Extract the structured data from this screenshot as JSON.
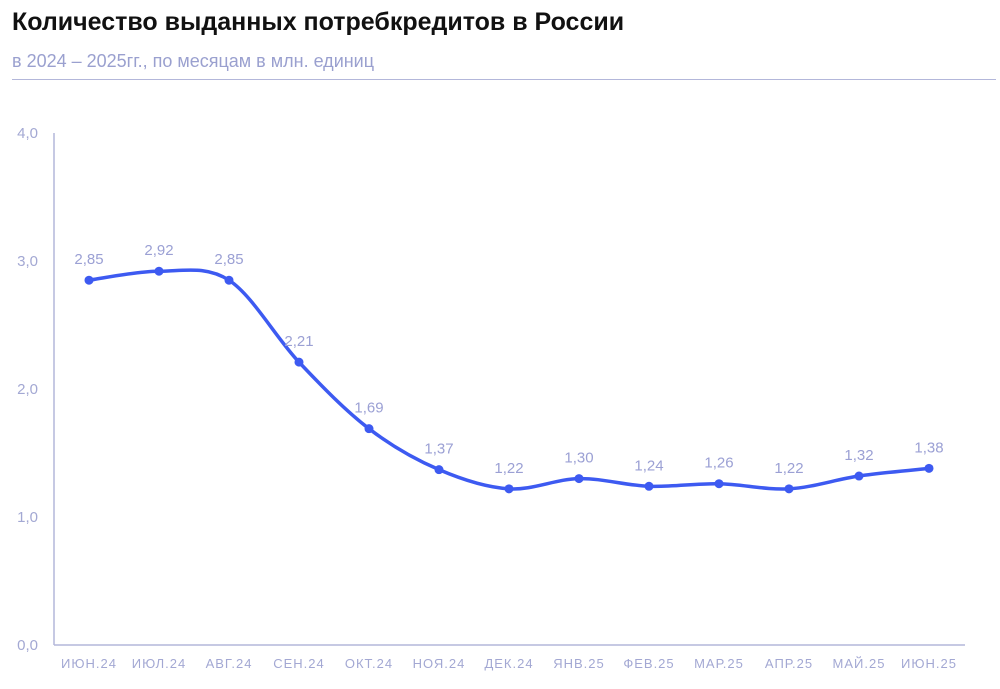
{
  "title": "Количество выданных потребкредитов в России",
  "subtitle": "в 2024 – 2025гг., по месяцам в млн. единиц",
  "colors": {
    "line": "#3d5af1",
    "axis": "#b3b7da",
    "labels": "#9ba0d4"
  },
  "chart_data": {
    "type": "line",
    "categories": [
      "ИЮН.24",
      "ИЮЛ.24",
      "АВГ.24",
      "СЕН.24",
      "ОКТ.24",
      "НОЯ.24",
      "ДЕК.24",
      "ЯНВ.25",
      "ФЕВ.25",
      "МАР.25",
      "АПР.25",
      "МАЙ.25",
      "ИЮН.25"
    ],
    "values": [
      2.85,
      2.92,
      2.85,
      2.21,
      1.69,
      1.37,
      1.22,
      1.3,
      1.24,
      1.26,
      1.22,
      1.32,
      1.38
    ],
    "value_labels": [
      "2,85",
      "2,92",
      "2,85",
      "2,21",
      "1,69",
      "1,37",
      "1,22",
      "1,30",
      "1,24",
      "1,26",
      "1,22",
      "1,32",
      "1,38"
    ],
    "y_ticks": [
      0,
      1,
      2,
      3,
      4
    ],
    "y_tick_labels": [
      "0,0",
      "1,0",
      "2,0",
      "3,0",
      "4,0"
    ],
    "ylim": [
      0,
      4
    ],
    "grid": false,
    "legend": "none"
  }
}
